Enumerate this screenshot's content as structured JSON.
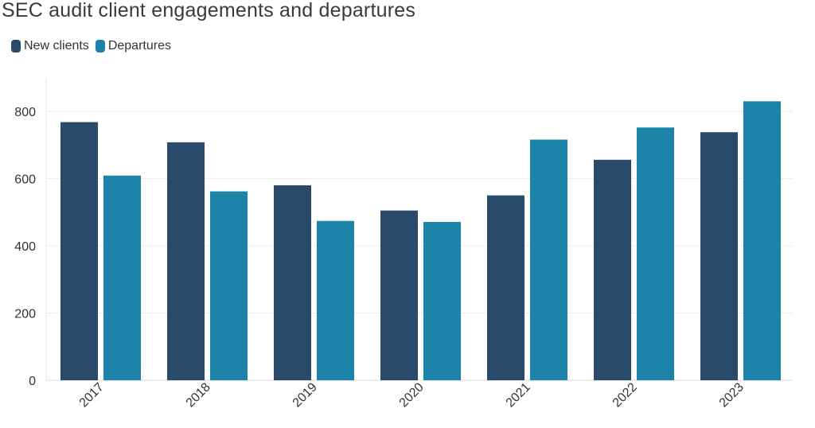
{
  "chart_data": {
    "type": "bar",
    "title": "SEC audit client engagements and departures",
    "xlabel": "",
    "ylabel": "",
    "categories": [
      "2017",
      "2018",
      "2019",
      "2020",
      "2021",
      "2022",
      "2023"
    ],
    "series": [
      {
        "name": "New clients",
        "color": "#2a4a6b",
        "values": [
          768,
          708,
          580,
          505,
          550,
          656,
          738
        ]
      },
      {
        "name": "Departures",
        "color": "#1b84a8",
        "values": [
          609,
          562,
          474,
          471,
          716,
          752,
          830
        ]
      }
    ],
    "ylim": [
      0,
      900
    ],
    "yticks": [
      0,
      200,
      400,
      600,
      800
    ],
    "grid": true,
    "legend_position": "top-left"
  }
}
